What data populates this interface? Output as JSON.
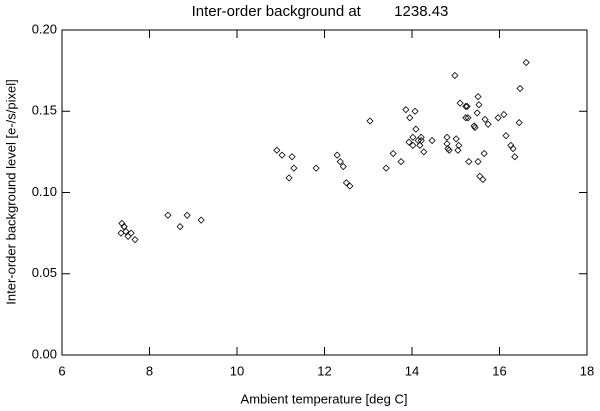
{
  "chart_data": {
    "type": "scatter",
    "title": "Inter-order background at        1238.43",
    "x_label": "Ambient temperature [deg C]",
    "y_label": "Inter-order background level [e-/s/pixel]",
    "x": [
      7.37,
      7.42,
      7.35,
      7.46,
      7.51,
      7.58,
      7.67,
      7.42,
      8.42,
      8.7,
      8.86,
      9.18,
      10.91,
      11.03,
      11.26,
      11.19,
      11.3,
      11.81,
      12.29,
      12.36,
      12.43,
      12.5,
      12.58,
      13.04,
      13.41,
      13.57,
      13.75,
      13.86,
      13.93,
      13.95,
      14.02,
      14.02,
      14.07,
      14.09,
      14.14,
      14.18,
      14.21,
      14.21,
      14.27,
      14.46,
      14.8,
      14.8,
      14.82,
      14.85,
      14.98,
      15.01,
      15.05,
      15.07,
      15.1,
      15.23,
      15.23,
      15.26,
      15.28,
      15.3,
      15.42,
      15.44,
      15.49,
      15.51,
      15.53,
      15.51,
      15.55,
      15.62,
      15.67,
      15.65,
      15.74,
      15.97,
      16.1,
      16.15,
      16.26,
      16.31,
      16.35,
      16.47,
      16.45,
      16.61
    ],
    "values": [
      0.081,
      0.079,
      0.075,
      0.076,
      0.073,
      0.075,
      0.071,
      0.079,
      0.086,
      0.079,
      0.086,
      0.083,
      0.126,
      0.123,
      0.122,
      0.109,
      0.115,
      0.115,
      0.123,
      0.119,
      0.116,
      0.106,
      0.104,
      0.144,
      0.115,
      0.124,
      0.119,
      0.151,
      0.131,
      0.146,
      0.129,
      0.134,
      0.15,
      0.139,
      0.132,
      0.129,
      0.132,
      0.134,
      0.125,
      0.132,
      0.134,
      0.13,
      0.127,
      0.126,
      0.172,
      0.133,
      0.126,
      0.129,
      0.155,
      0.146,
      0.153,
      0.153,
      0.146,
      0.119,
      0.141,
      0.14,
      0.149,
      0.159,
      0.154,
      0.119,
      0.11,
      0.108,
      0.145,
      0.124,
      0.142,
      0.146,
      0.148,
      0.135,
      0.129,
      0.127,
      0.122,
      0.164,
      0.143,
      0.18
    ],
    "color": "#000000",
    "xlim": [
      6,
      18
    ],
    "xticks": [
      6,
      8,
      10,
      12,
      14,
      16,
      18
    ],
    "ylim": [
      0,
      0.2
    ],
    "yticks": [
      {
        "value": 0,
        "label": "0.00"
      },
      {
        "value": 0.05,
        "label": "0.05"
      },
      {
        "value": 0.1,
        "label": "0.10"
      },
      {
        "value": 0.15,
        "label": "0.15"
      },
      {
        "value": 0.2,
        "label": "0.20"
      }
    ]
  }
}
